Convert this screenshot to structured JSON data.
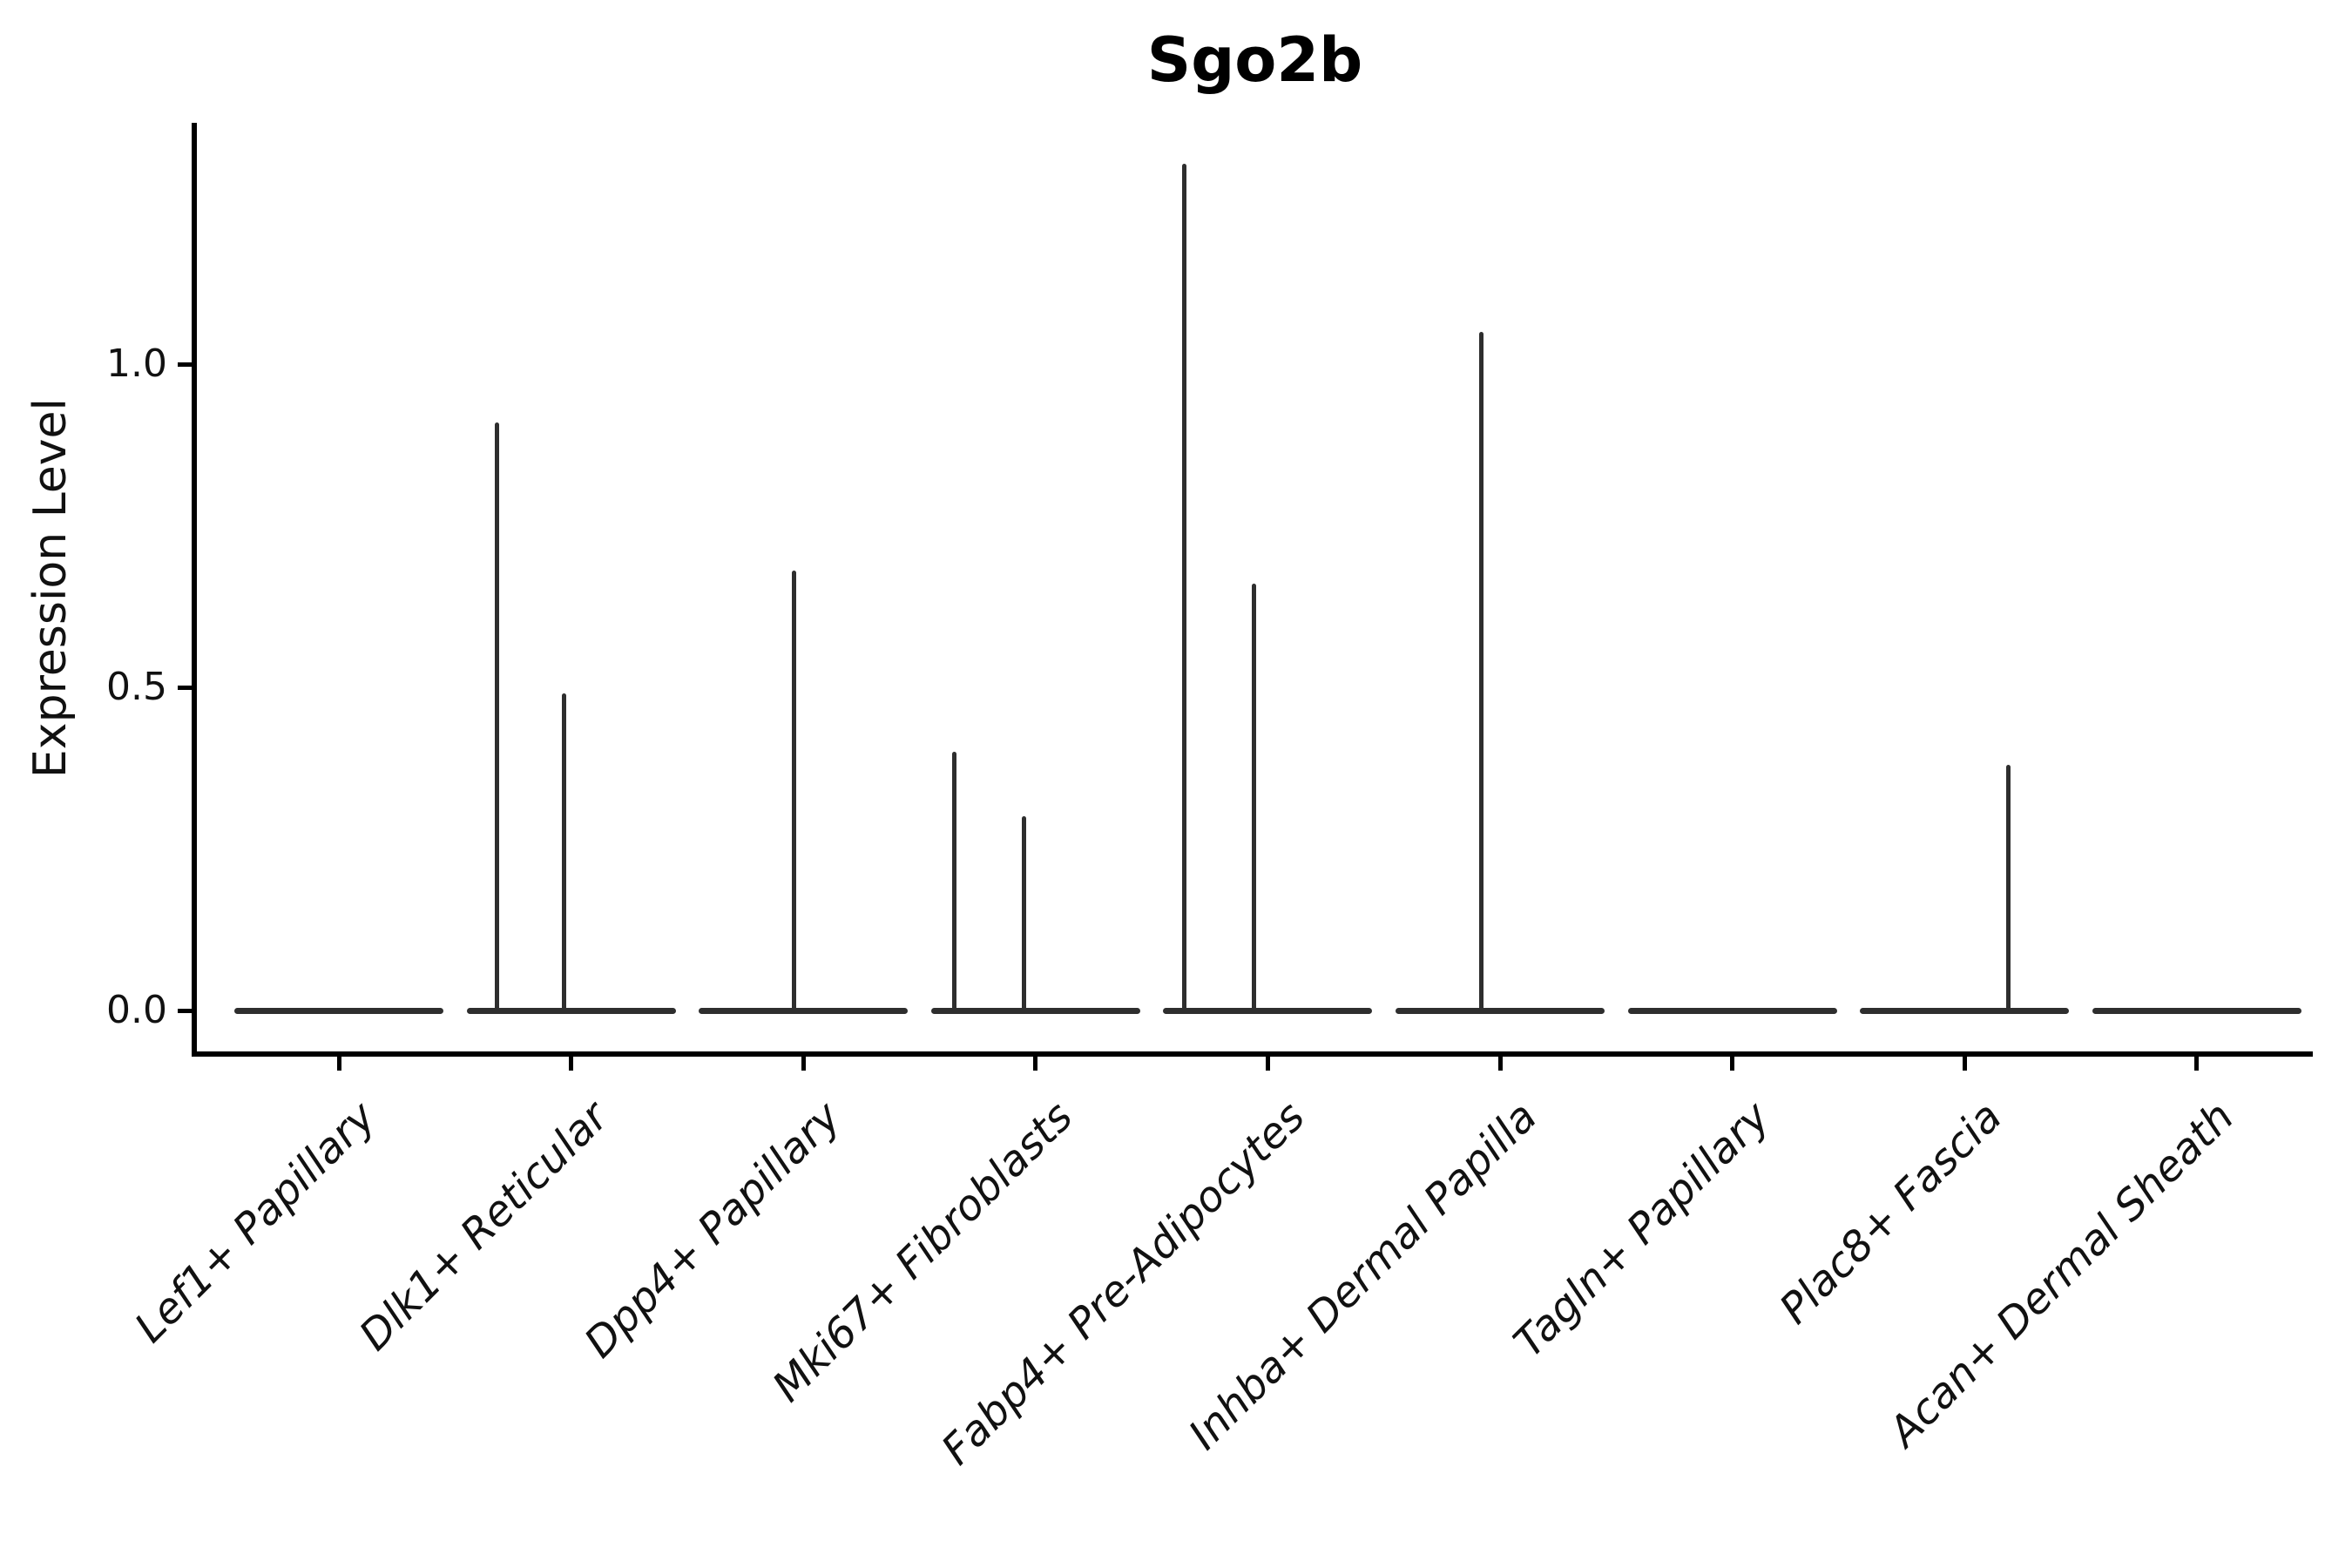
{
  "chart_data": {
    "type": "violin",
    "title": "Sgo2b",
    "xlabel": "",
    "ylabel": "Expression Level",
    "ytick_labels": [
      "0.0",
      "0.5",
      "1.0"
    ],
    "ytick_values": [
      0.0,
      0.5,
      1.0
    ],
    "ylim": [
      -0.07,
      1.37
    ],
    "grid": false,
    "legend": "none",
    "categories": [
      "Lef1+ Papillary",
      "Dlk1+ Reticular",
      "Dpp4+ Papillary",
      "Mki67+ Fibroblasts",
      "Fabp4+ Pre-Adipocytes",
      "Inhba+ Dermal Papilla",
      "Tagln+ Papillary",
      "Plac8+ Fascia",
      "Acan+ Dermal Sheath"
    ],
    "violins": [
      {
        "category": "Lef1+ Papillary",
        "baseline_value": 0.0,
        "spikes": []
      },
      {
        "category": "Dlk1+ Reticular",
        "baseline_value": 0.0,
        "spikes": [
          {
            "offset_frac": -0.32,
            "value": 0.91
          },
          {
            "offset_frac": -0.03,
            "value": 0.49
          }
        ]
      },
      {
        "category": "Dpp4+ Papillary",
        "baseline_value": 0.0,
        "spikes": [
          {
            "offset_frac": -0.04,
            "value": 0.68
          }
        ]
      },
      {
        "category": "Mki67+ Fibroblasts",
        "baseline_value": 0.0,
        "spikes": [
          {
            "offset_frac": -0.35,
            "value": 0.4
          },
          {
            "offset_frac": -0.05,
            "value": 0.3
          }
        ]
      },
      {
        "category": "Fabp4+ Pre-Adipocytes",
        "baseline_value": 0.0,
        "spikes": [
          {
            "offset_frac": -0.36,
            "value": 1.31
          },
          {
            "offset_frac": -0.06,
            "value": 0.66
          }
        ]
      },
      {
        "category": "Inhba+ Dermal Papilla",
        "baseline_value": 0.0,
        "spikes": [
          {
            "offset_frac": -0.08,
            "value": 1.05
          }
        ]
      },
      {
        "category": "Tagln+ Papillary",
        "baseline_value": 0.0,
        "spikes": []
      },
      {
        "category": "Plac8+ Fascia",
        "baseline_value": 0.0,
        "spikes": [
          {
            "offset_frac": 0.19,
            "value": 0.38
          }
        ]
      },
      {
        "category": "Acan+ Dermal Sheath",
        "baseline_value": 0.0,
        "spikes": []
      }
    ],
    "colors": {
      "violin_line": "#2e2e2e",
      "spine": "#000000",
      "text": "#111111"
    }
  }
}
